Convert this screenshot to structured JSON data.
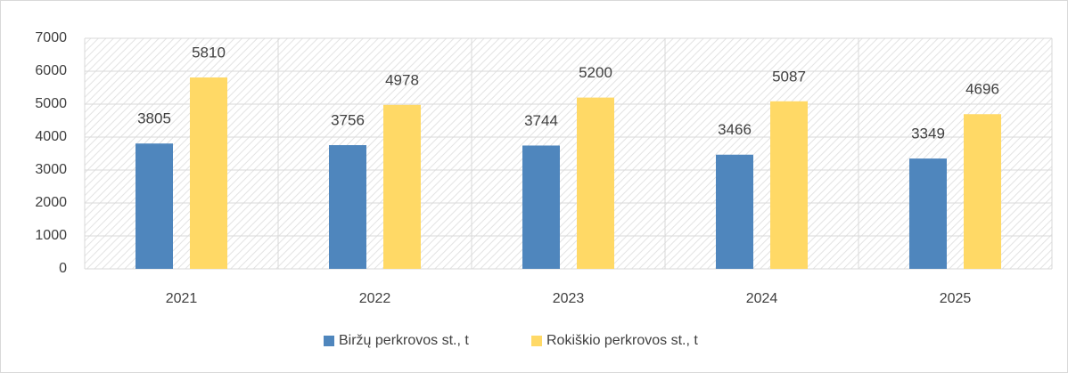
{
  "chart_data": {
    "type": "bar",
    "categories": [
      "2021",
      "2022",
      "2023",
      "2024",
      "2025"
    ],
    "series": [
      {
        "name": "Biržų perkrovos st., t",
        "color": "#4f86bd",
        "values": [
          3805,
          3756,
          3744,
          3466,
          3349
        ]
      },
      {
        "name": "Rokiškio perkrovos st., t",
        "color": "#ffd966",
        "values": [
          5810,
          4978,
          5200,
          5087,
          4696
        ]
      }
    ],
    "ylim": [
      0,
      7000
    ],
    "yticks": [
      0,
      1000,
      2000,
      3000,
      4000,
      5000,
      6000,
      7000
    ],
    "grid": true,
    "legend": "bottom"
  }
}
